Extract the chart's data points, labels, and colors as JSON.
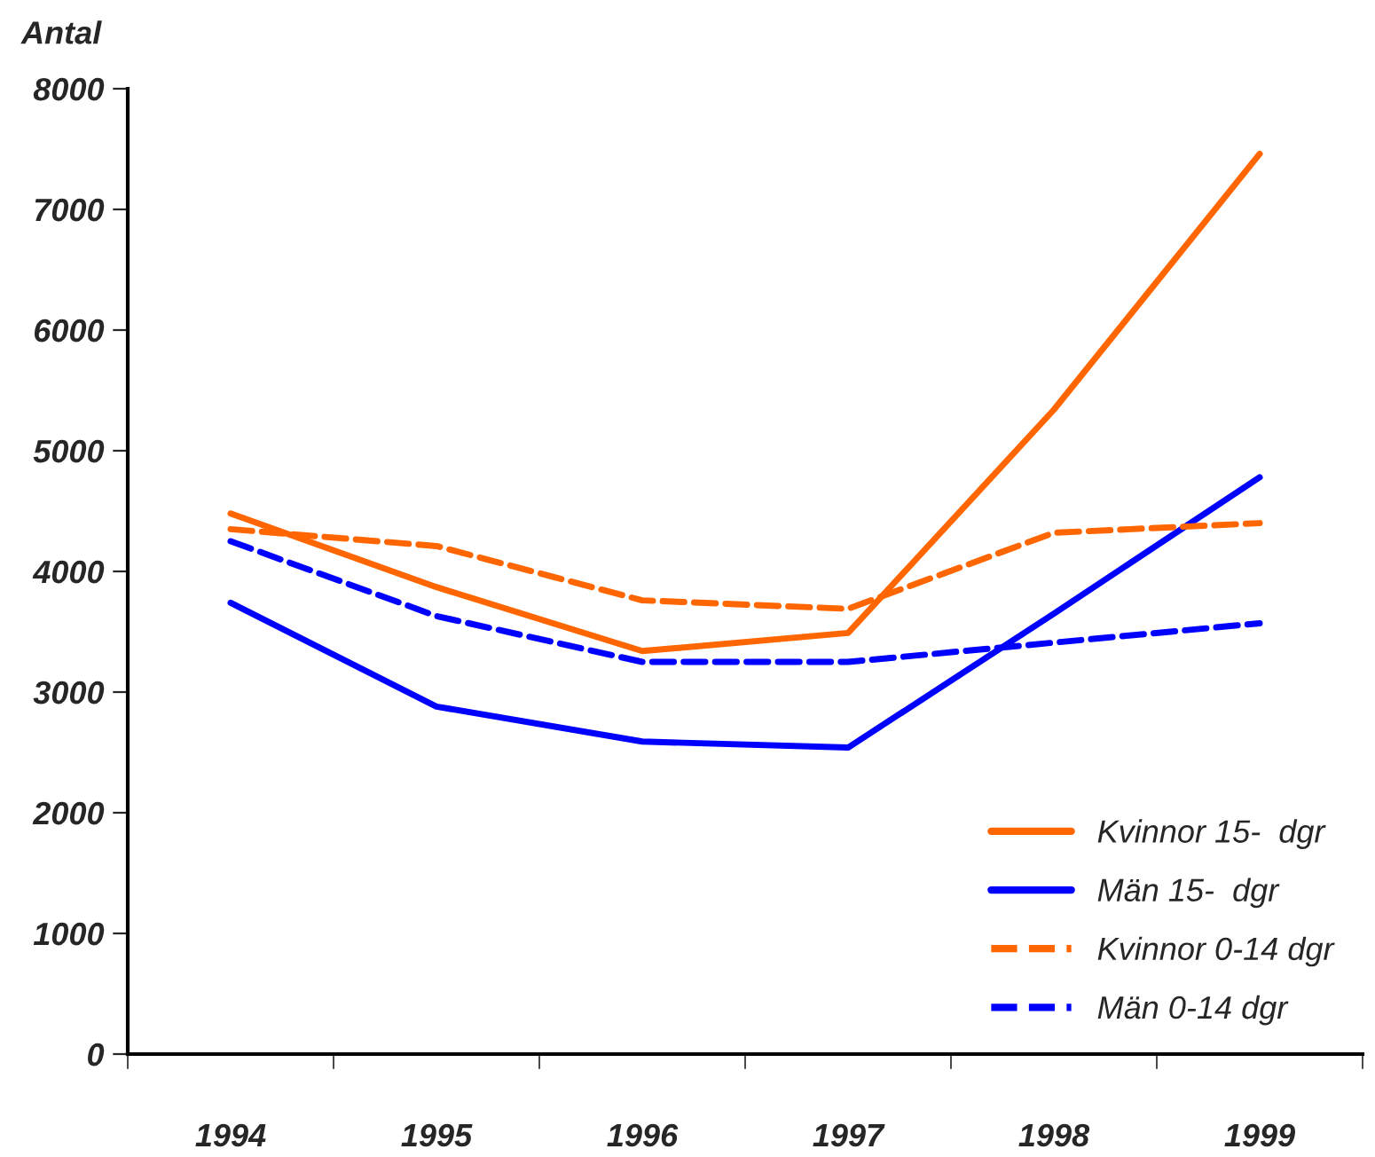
{
  "chart_data": {
    "type": "line",
    "ylabel": "Antal",
    "categories": [
      "1994",
      "1995",
      "1996",
      "1997",
      "1998",
      "1999"
    ],
    "series": [
      {
        "name": "Kvinnor 15-  dgr",
        "color": "#ff6600",
        "line_style": "solid",
        "values": [
          4480,
          3870,
          3340,
          3490,
          5340,
          7460
        ]
      },
      {
        "name": "Män 15-  dgr",
        "color": "#0000ff",
        "line_style": "solid",
        "values": [
          3740,
          2880,
          2590,
          2540,
          3650,
          4780
        ]
      },
      {
        "name": "Kvinnor 0-14 dgr",
        "color": "#ff6600",
        "line_style": "dashed",
        "values": [
          4350,
          4210,
          3760,
          3690,
          4320,
          4400
        ]
      },
      {
        "name": "Män 0-14 dgr",
        "color": "#0000ff",
        "line_style": "dashed",
        "values": [
          4250,
          3630,
          3250,
          3250,
          3410,
          3570
        ]
      }
    ],
    "ylim": [
      0,
      8000
    ],
    "yticks": [
      0,
      1000,
      2000,
      3000,
      4000,
      5000,
      6000,
      7000,
      8000
    ],
    "grid": false,
    "legend": "bottom right",
    "marker": "none"
  }
}
